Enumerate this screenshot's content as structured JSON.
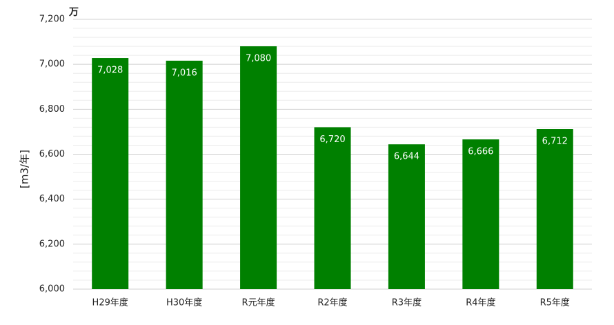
{
  "chart_data": {
    "type": "bar",
    "unit_label": "万",
    "ylabel": "[m3/年]",
    "categories": [
      "H29年度",
      "H30年度",
      "R元年度",
      "R2年度",
      "R3年度",
      "R4年度",
      "R5年度"
    ],
    "values": [
      7028,
      7016,
      7080,
      6720,
      6644,
      6666,
      6712
    ],
    "value_labels": [
      "7,028",
      "7,016",
      "7,080",
      "6,720",
      "6,644",
      "6,666",
      "6,712"
    ],
    "color": "#008000",
    "ylim": [
      6000,
      7200
    ],
    "yticks": [
      {
        "value": 6000,
        "label": "6,000"
      },
      {
        "value": 6200,
        "label": "6,200"
      },
      {
        "value": 6400,
        "label": "6,400"
      },
      {
        "value": 6600,
        "label": "6,600"
      },
      {
        "value": 6800,
        "label": "6,800"
      },
      {
        "value": 7000,
        "label": "7,000"
      },
      {
        "value": 7200,
        "label": "7,200"
      }
    ],
    "yminorticks": [
      6040,
      6080,
      6120,
      6160,
      6240,
      6280,
      6320,
      6360,
      6440,
      6480,
      6520,
      6560,
      6640,
      6680,
      6720,
      6760,
      6840,
      6880,
      6920,
      6960,
      7040,
      7080,
      7120,
      7160
    ],
    "grid": true
  }
}
